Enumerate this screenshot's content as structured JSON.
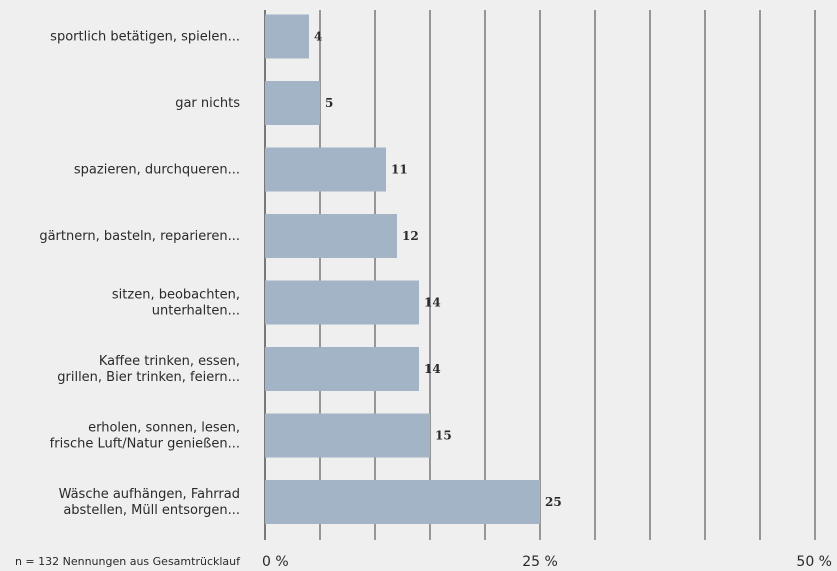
{
  "chart_data": {
    "type": "bar",
    "orientation": "horizontal",
    "categories": [
      [
        "sportlich betätigen, spielen..."
      ],
      [
        "gar nichts"
      ],
      [
        "spazieren, durchqueren..."
      ],
      [
        "gärtnern, basteln, reparieren..."
      ],
      [
        "sitzen, beobachten,",
        "unterhalten..."
      ],
      [
        "Kaffee trinken, essen,",
        "grillen, Bier trinken, feiern..."
      ],
      [
        "erholen, sonnen, lesen,",
        "frische Luft/Natur genießen..."
      ],
      [
        "Wäsche aufhängen, Fahrrad",
        "abstellen, Müll entsorgen..."
      ]
    ],
    "values": [
      4,
      5,
      11,
      12,
      14,
      14,
      15,
      25
    ],
    "value_labels": [
      "4",
      "5",
      "11",
      "12",
      "14",
      "14",
      "15",
      "25"
    ],
    "xlim": [
      0,
      50
    ],
    "x_ticks": [
      {
        "value": 0,
        "label": "0 %"
      },
      {
        "value": 25,
        "label": "25 %"
      },
      {
        "value": 50,
        "label": "50 %"
      }
    ],
    "gridline_step": 5,
    "grid": true,
    "note": "n = 132 Nennungen aus Gesamtrücklauf",
    "colors": {
      "bar": "#a3b4c6",
      "background": "#efefef",
      "grid": "#2a2a2a",
      "text": "#2a2a2a"
    }
  }
}
